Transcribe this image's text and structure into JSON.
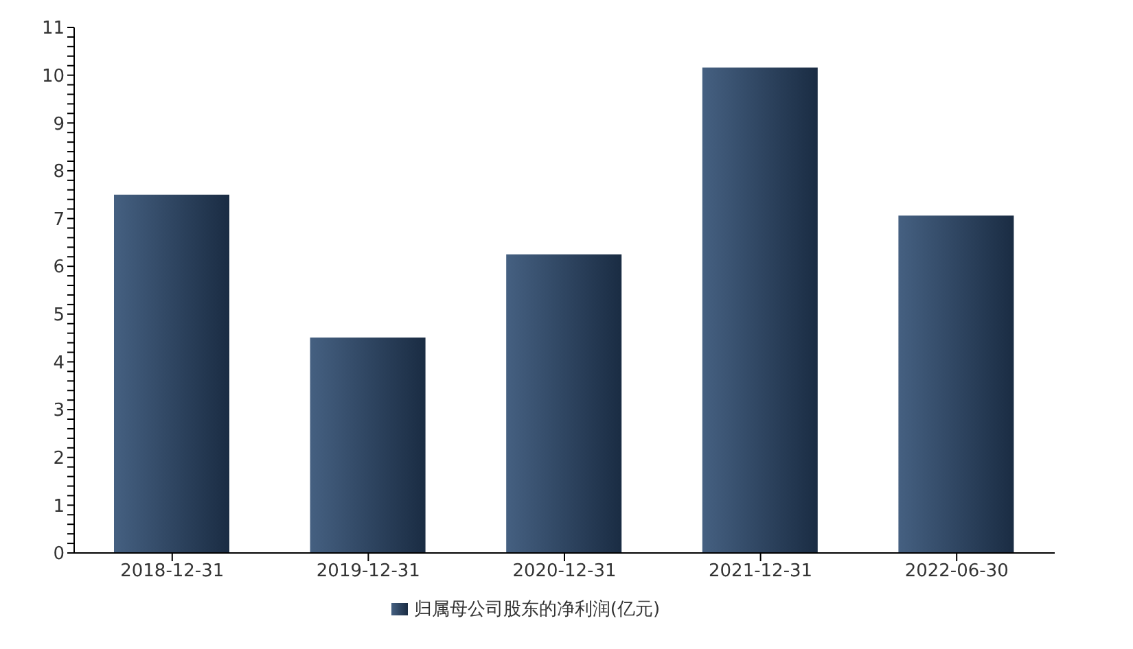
{
  "chart_data": {
    "type": "bar",
    "categories": [
      "2018-12-31",
      "2019-12-31",
      "2020-12-31",
      "2021-12-31",
      "2022-06-30"
    ],
    "series": [
      {
        "name": "归属母公司股东的净利润(亿元)",
        "color": "#2c4a70",
        "values": [
          7.5,
          4.51,
          6.25,
          10.16,
          7.06
        ]
      }
    ],
    "ylim": [
      0,
      11
    ],
    "yticks": [
      0,
      {
        "value": 0.2,
        "label": null
      },
      {
        "value": 0.4,
        "label": null
      },
      {
        "value": 0.6,
        "label": null
      },
      {
        "value": 0.8,
        "label": null
      },
      1,
      {
        "value": 1.2,
        "label": null
      },
      {
        "value": 1.4,
        "label": null
      },
      {
        "value": 1.6,
        "label": null
      },
      {
        "value": 1.8,
        "label": null
      },
      2,
      {
        "value": 2.2,
        "label": null
      },
      {
        "value": 2.4,
        "label": null
      },
      {
        "value": 2.6,
        "label": null
      },
      {
        "value": 2.8,
        "label": null
      },
      3,
      {
        "value": 3.2,
        "label": null
      },
      {
        "value": 3.4,
        "label": null
      },
      {
        "value": 3.6,
        "label": null
      },
      {
        "value": 3.8,
        "label": null
      },
      4,
      {
        "value": 4.2,
        "label": null
      },
      {
        "value": 4.4,
        "label": null
      },
      {
        "value": 4.6,
        "label": null
      },
      {
        "value": 4.8,
        "label": null
      },
      5,
      {
        "value": 5.2,
        "label": null
      },
      {
        "value": 5.4,
        "label": null
      },
      {
        "value": 5.6,
        "label": null
      },
      {
        "value": 5.8,
        "label": null
      },
      6,
      {
        "value": 6.2,
        "label": null
      },
      {
        "value": 6.4,
        "label": null
      },
      {
        "value": 6.6,
        "label": null
      },
      {
        "value": 6.8,
        "label": null
      },
      7,
      {
        "value": 7.2,
        "label": null
      },
      {
        "value": 7.4,
        "label": null
      },
      {
        "value": 7.6,
        "label": null
      },
      {
        "value": 7.8,
        "label": null
      },
      8,
      {
        "value": 8.2,
        "label": null
      },
      {
        "value": 8.4,
        "label": null
      },
      {
        "value": 8.6,
        "label": null
      },
      {
        "value": 8.8,
        "label": null
      },
      9,
      {
        "value": 9.2,
        "label": null
      },
      {
        "value": 9.4,
        "label": null
      },
      {
        "value": 9.6,
        "label": null
      },
      {
        "value": 9.8,
        "label": null
      },
      10,
      {
        "value": 10.2,
        "label": null
      },
      {
        "value": 10.4,
        "label": null
      },
      {
        "value": 10.6,
        "label": null
      },
      {
        "value": 10.8,
        "label": null
      },
      11
    ],
    "grid": false,
    "legend": "bottom"
  }
}
